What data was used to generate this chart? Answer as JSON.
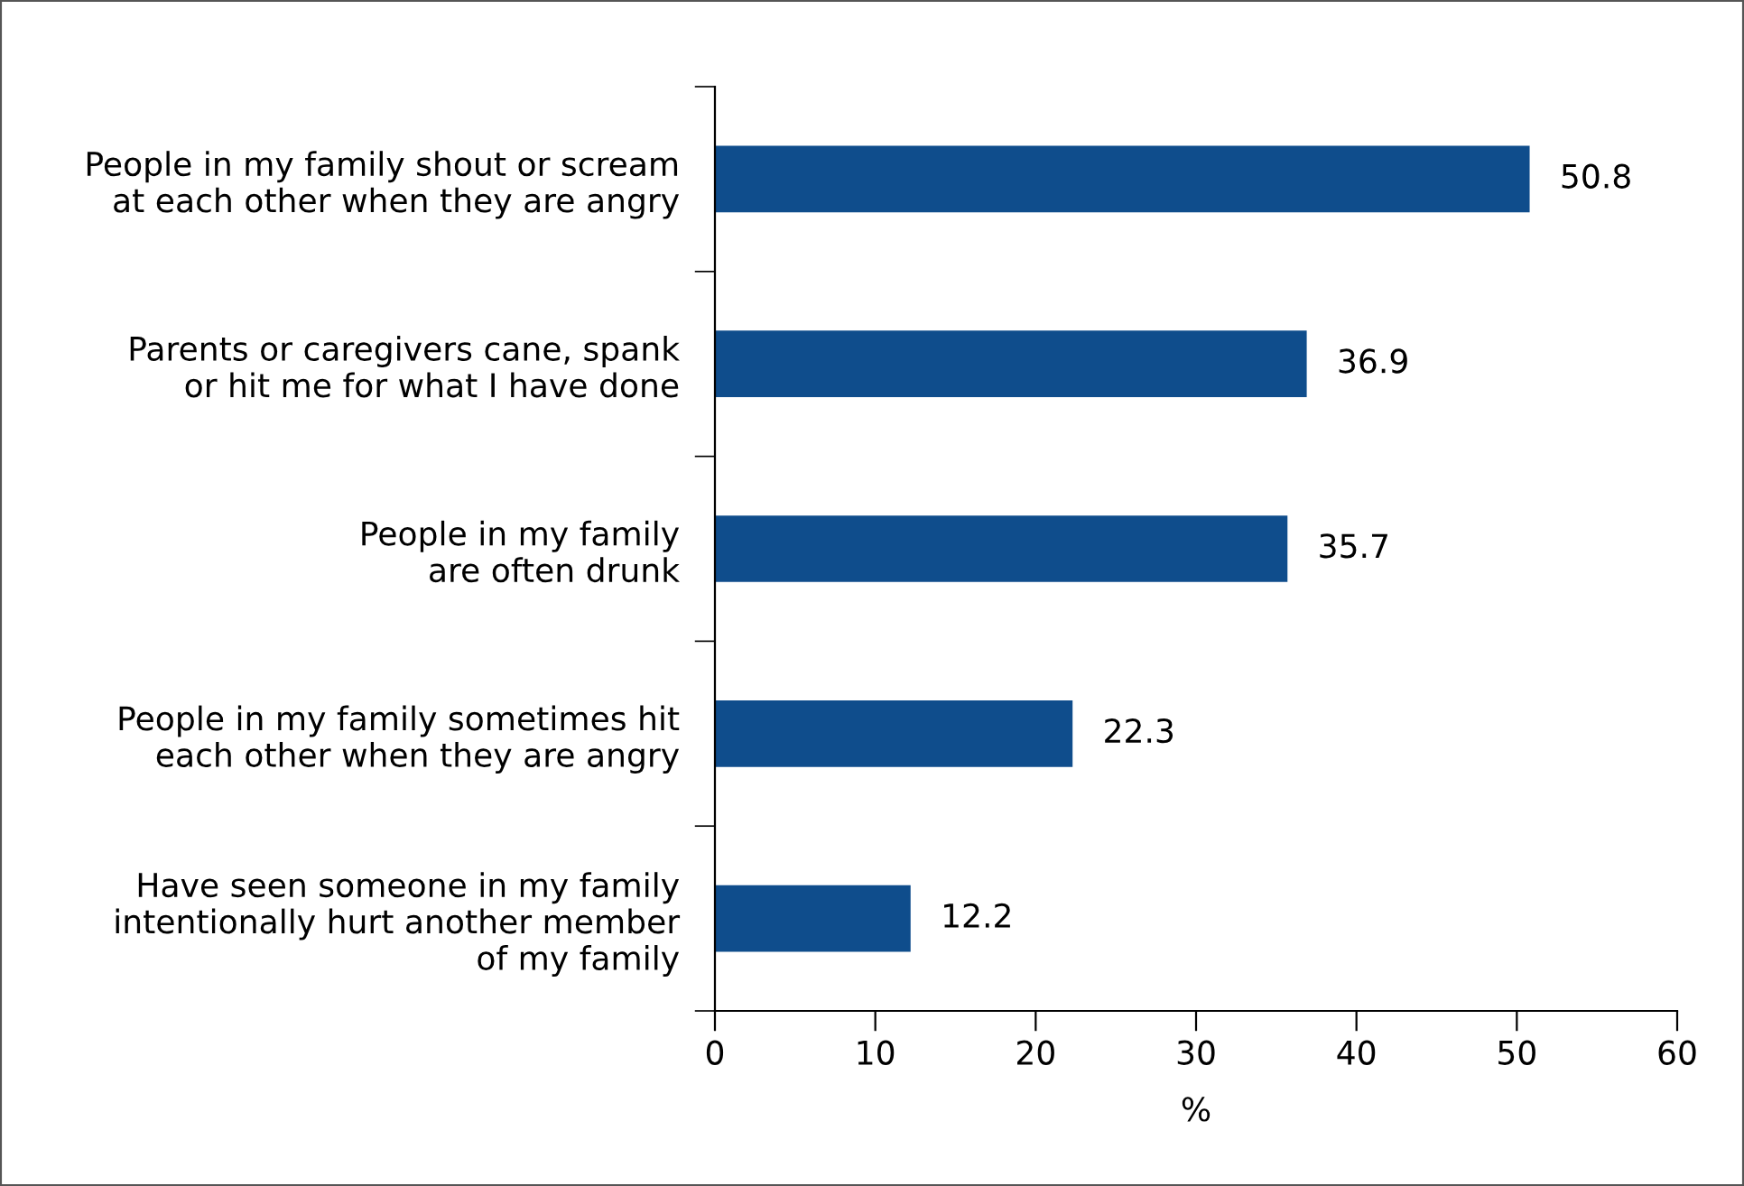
{
  "chart_data": {
    "type": "bar",
    "orientation": "horizontal",
    "categories": [
      "People in my family shout or scream\nat each other when they are angry",
      "Parents or caregivers cane, spank\nor hit me for what I have done",
      "People in my family\nare often drunk",
      "People in my family sometimes hit\neach other when they are angry",
      "Have seen someone in my family\nintentionally hurt another member\nof my family"
    ],
    "values": [
      50.8,
      36.9,
      35.7,
      22.3,
      12.2
    ],
    "color": "#0f4d8c",
    "xlim": [
      0,
      60
    ],
    "xticks": [
      0,
      10,
      20,
      30,
      40,
      50,
      60
    ],
    "xlabel": "%",
    "data_labels": true,
    "grid": false,
    "legend": false
  }
}
